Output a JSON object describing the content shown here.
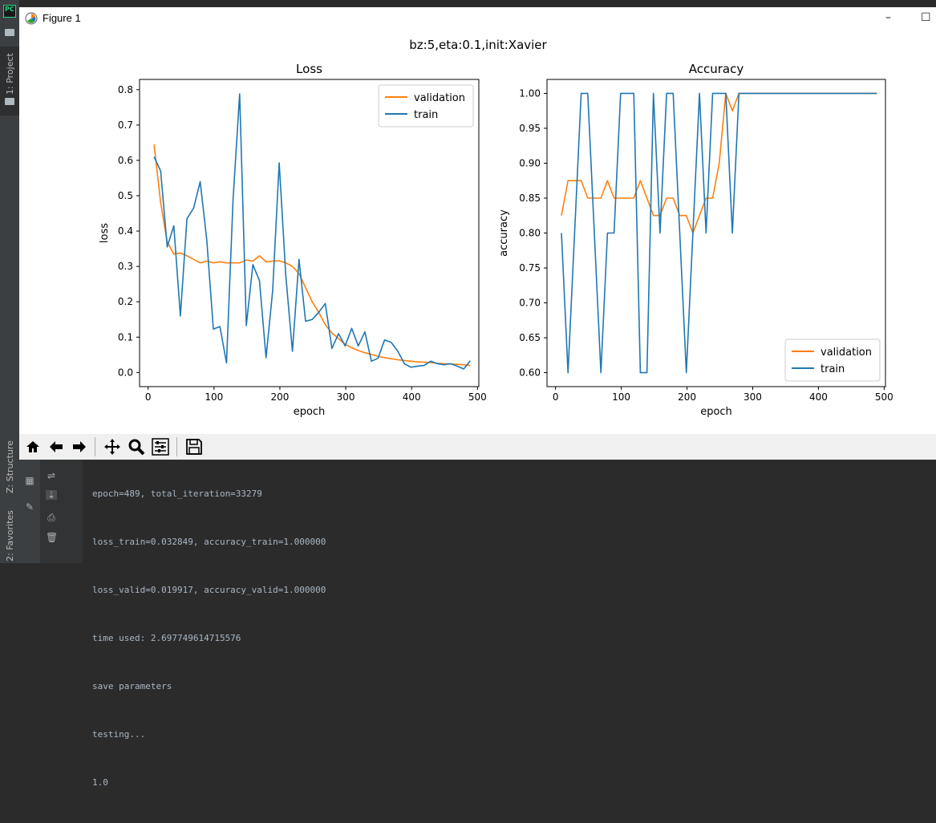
{
  "ide": {
    "logo": "PC",
    "vertical_tabs": {
      "project": "1: Project",
      "structure": "Z: Structure",
      "favorites": "2: Favorites"
    }
  },
  "figure_window": {
    "title": "Figure 1",
    "minimize_symbol": "–",
    "maximize_symbol": "☐",
    "suptitle": "bz:5,eta:0.1,init:Xavier"
  },
  "colors": {
    "validation": "#ff7f0e",
    "train": "#1f77b4"
  },
  "chart_data": [
    {
      "type": "line",
      "title": "Loss",
      "xlabel": "epoch",
      "ylabel": "loss",
      "xlim": [
        -13,
        502
      ],
      "ylim": [
        -0.04,
        0.829
      ],
      "xticks": [
        0,
        100,
        200,
        300,
        400,
        500
      ],
      "yticks": [
        0.0,
        0.1,
        0.2,
        0.3,
        0.4,
        0.5,
        0.6,
        0.7,
        0.8
      ],
      "ytick_labels": [
        "0.0",
        "0.1",
        "0.2",
        "0.3",
        "0.4",
        "0.5",
        "0.6",
        "0.7",
        "0.8"
      ],
      "legend_position": "upper right",
      "x": [
        9,
        19,
        29,
        39,
        49,
        59,
        69,
        79,
        89,
        99,
        109,
        119,
        129,
        139,
        149,
        159,
        169,
        179,
        189,
        199,
        209,
        219,
        229,
        239,
        249,
        259,
        269,
        279,
        289,
        299,
        309,
        319,
        329,
        339,
        349,
        359,
        369,
        379,
        389,
        399,
        409,
        419,
        429,
        439,
        449,
        459,
        469,
        479,
        489
      ],
      "series": [
        {
          "name": "validation",
          "values": [
            0.645,
            0.48,
            0.37,
            0.335,
            0.338,
            0.33,
            0.32,
            0.31,
            0.315,
            0.31,
            0.313,
            0.31,
            0.31,
            0.31,
            0.318,
            0.315,
            0.33,
            0.313,
            0.315,
            0.316,
            0.31,
            0.3,
            0.28,
            0.24,
            0.2,
            0.17,
            0.135,
            0.112,
            0.096,
            0.08,
            0.07,
            0.062,
            0.056,
            0.051,
            0.046,
            0.042,
            0.039,
            0.036,
            0.034,
            0.032,
            0.03,
            0.029,
            0.028,
            0.026,
            0.025,
            0.024,
            0.023,
            0.022,
            0.02
          ]
        },
        {
          "name": "train",
          "values": [
            0.61,
            0.57,
            0.355,
            0.415,
            0.16,
            0.435,
            0.465,
            0.54,
            0.375,
            0.123,
            0.13,
            0.027,
            0.49,
            0.788,
            0.133,
            0.305,
            0.26,
            0.042,
            0.23,
            0.593,
            0.275,
            0.06,
            0.32,
            0.145,
            0.15,
            0.17,
            0.195,
            0.068,
            0.11,
            0.075,
            0.125,
            0.075,
            0.115,
            0.032,
            0.04,
            0.092,
            0.085,
            0.06,
            0.025,
            0.015,
            0.018,
            0.02,
            0.032,
            0.025,
            0.022,
            0.025,
            0.018,
            0.01,
            0.033
          ]
        }
      ]
    },
    {
      "type": "line",
      "title": "Accuracy",
      "xlabel": "epoch",
      "ylabel": "accuracy",
      "xlim": [
        -13,
        502
      ],
      "ylim": [
        0.58,
        1.02
      ],
      "xticks": [
        0,
        100,
        200,
        300,
        400,
        500
      ],
      "yticks": [
        0.6,
        0.65,
        0.7,
        0.75,
        0.8,
        0.85,
        0.9,
        0.95,
        1.0
      ],
      "ytick_labels": [
        "0.60",
        "0.65",
        "0.70",
        "0.75",
        "0.80",
        "0.85",
        "0.90",
        "0.95",
        "1.00"
      ],
      "legend_position": "lower right",
      "x": [
        9,
        19,
        29,
        39,
        49,
        59,
        69,
        79,
        89,
        99,
        109,
        119,
        129,
        139,
        149,
        159,
        169,
        179,
        189,
        199,
        209,
        219,
        229,
        239,
        249,
        259,
        269,
        279,
        289,
        299,
        309,
        319,
        329,
        339,
        349,
        359,
        369,
        379,
        389,
        399,
        409,
        419,
        429,
        439,
        449,
        459,
        469,
        479,
        489
      ],
      "series": [
        {
          "name": "validation",
          "values": [
            0.825,
            0.875,
            0.875,
            0.875,
            0.85,
            0.85,
            0.85,
            0.875,
            0.85,
            0.85,
            0.85,
            0.85,
            0.875,
            0.85,
            0.825,
            0.825,
            0.85,
            0.85,
            0.825,
            0.825,
            0.8,
            0.825,
            0.85,
            0.85,
            0.9,
            1.0,
            0.975,
            1.0,
            1.0,
            1.0,
            1.0,
            1.0,
            1.0,
            1.0,
            1.0,
            1.0,
            1.0,
            1.0,
            1.0,
            1.0,
            1.0,
            1.0,
            1.0,
            1.0,
            1.0,
            1.0,
            1.0,
            1.0,
            1.0
          ]
        },
        {
          "name": "train",
          "values": [
            0.8,
            0.6,
            0.8,
            1.0,
            1.0,
            0.8,
            0.6,
            0.8,
            0.8,
            1.0,
            1.0,
            1.0,
            0.6,
            0.6,
            1.0,
            0.8,
            1.0,
            1.0,
            0.8,
            0.6,
            0.8,
            1.0,
            0.8,
            1.0,
            1.0,
            1.0,
            0.8,
            1.0,
            1.0,
            1.0,
            1.0,
            1.0,
            1.0,
            1.0,
            1.0,
            1.0,
            1.0,
            1.0,
            1.0,
            1.0,
            1.0,
            1.0,
            1.0,
            1.0,
            1.0,
            1.0,
            1.0,
            1.0,
            1.0
          ]
        }
      ]
    }
  ],
  "toolbar": {
    "home": "home-icon",
    "back": "arrow-left-icon",
    "forward": "arrow-right-icon",
    "pan": "pan-icon",
    "zoom": "zoom-icon",
    "configure": "sliders-icon",
    "save": "save-icon"
  },
  "console": {
    "lines": [
      "epoch=489, total_iteration=33279",
      "loss_train=0.032849, accuracy_train=1.000000",
      "loss_valid=0.019917, accuracy_valid=1.000000",
      "time used: 2.697749614715576",
      "save parameters",
      "testing...",
      "1.0"
    ]
  }
}
